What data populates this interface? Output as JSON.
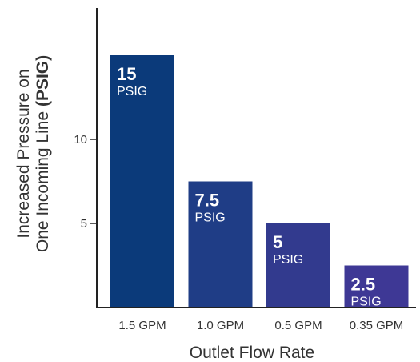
{
  "chart_data": {
    "type": "bar",
    "categories": [
      "1.5 GPM",
      "1.0 GPM",
      "0.5 GPM",
      "0.35 GPM"
    ],
    "values": [
      15,
      7.5,
      5,
      2.5
    ],
    "value_labels": [
      "15",
      "7.5",
      "5",
      "2.5"
    ],
    "unit_label": "PSIG",
    "xlabel": "Outlet Flow Rate",
    "ylabel_line1": "Increased Pressure on",
    "ylabel_line2_plain": "One Incoming Line ",
    "ylabel_line2_bold": "(PSIG)",
    "yticks": [
      5,
      10
    ],
    "ylim": [
      0,
      16.5
    ],
    "grid": false,
    "bar_colors": [
      "#0b3a7a",
      "#1f3d86",
      "#323a8e",
      "#3e3895"
    ]
  }
}
